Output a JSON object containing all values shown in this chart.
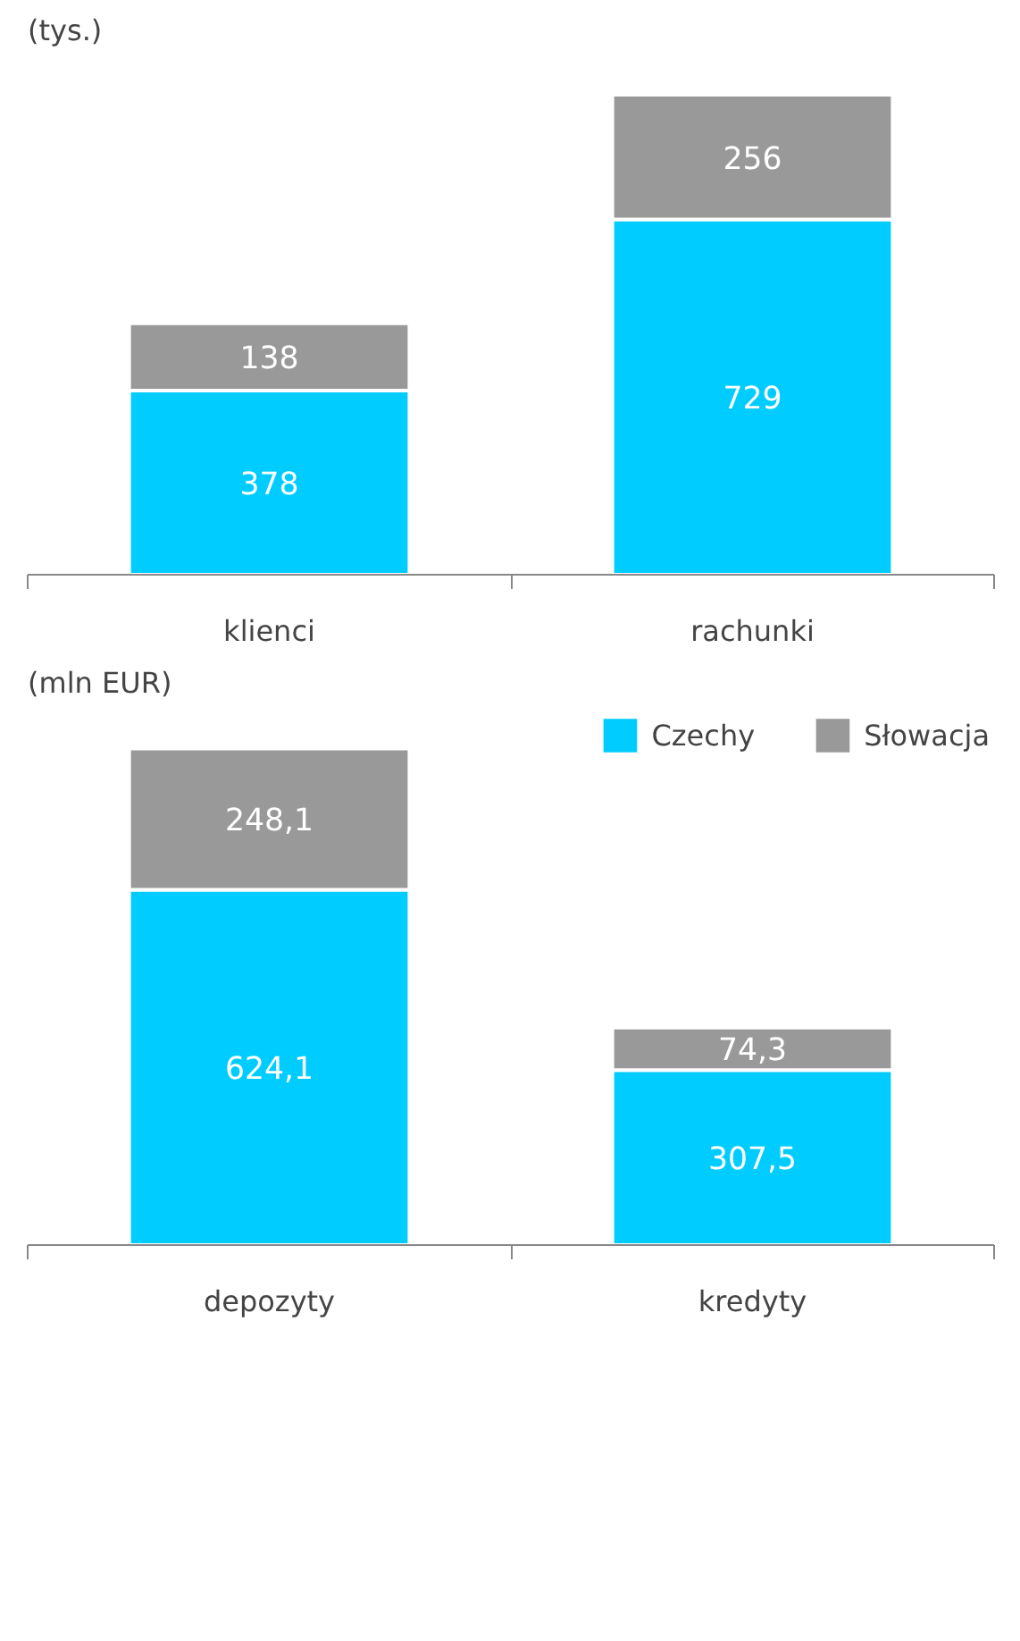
{
  "chart_data": [
    {
      "type": "bar",
      "title": "(tys.)",
      "categories": [
        "klienci",
        "rachunki"
      ],
      "stacked": true,
      "grid": false,
      "legend": false,
      "series": [
        {
          "color": "#00ccff",
          "values": [
            378,
            729
          ],
          "value_labels": [
            "378",
            "729"
          ]
        },
        {
          "color": "#999999",
          "values": [
            138,
            256
          ],
          "value_labels": [
            "138",
            "256"
          ]
        }
      ]
    },
    {
      "type": "bar",
      "title": "(mln EUR)",
      "categories": [
        "depozyty",
        "kredyty"
      ],
      "stacked": true,
      "grid": false,
      "legend": "top right",
      "series": [
        {
          "name": "Czechy",
          "color": "#00ccff",
          "values": [
            624.1,
            307.5
          ],
          "value_labels": [
            "624,1",
            "307,5"
          ]
        },
        {
          "name": "Słowacja",
          "color": "#999999",
          "values": [
            248.1,
            74.3
          ],
          "value_labels": [
            "248,1",
            "74,3"
          ]
        }
      ]
    }
  ]
}
